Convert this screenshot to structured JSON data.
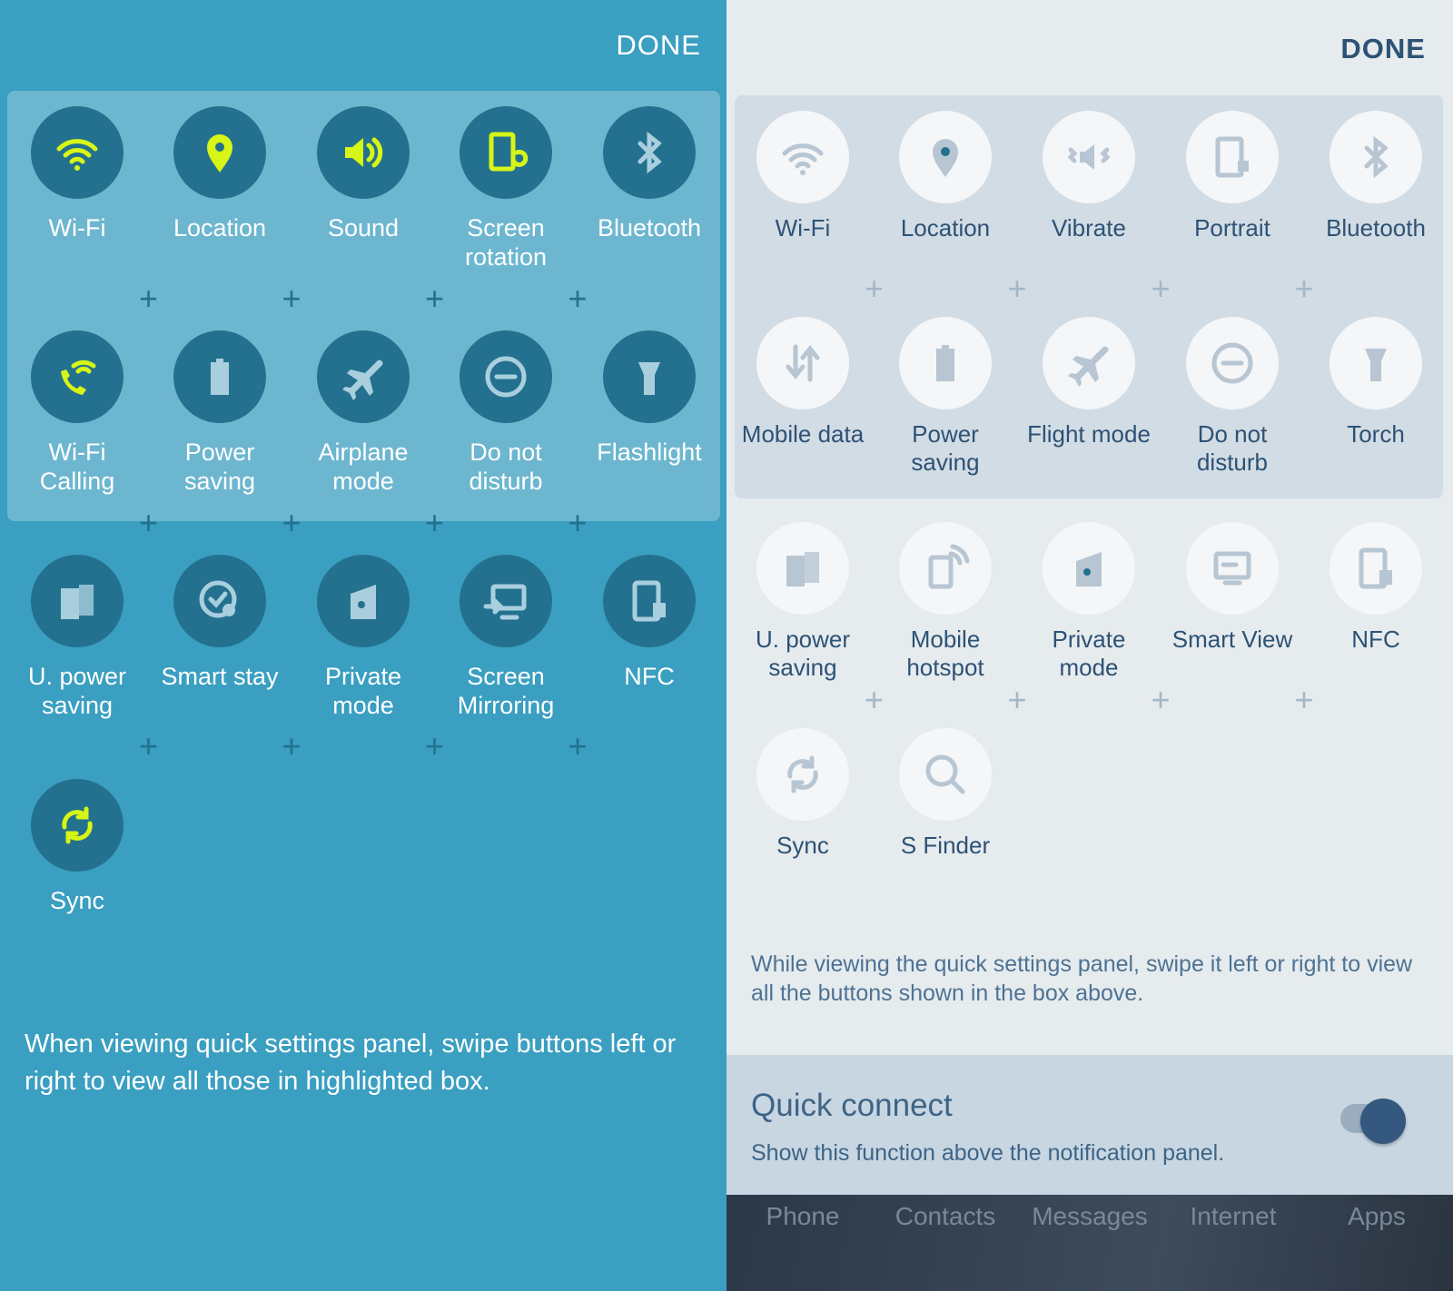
{
  "left": {
    "done": "DONE",
    "colors": {
      "background": "#3a9fc1",
      "highlight": "#6db6cf",
      "icon_bg": "#23718f",
      "active": "#d7f516",
      "inactive": "#a9cfdf"
    },
    "rows": [
      [
        {
          "label": "Wi-Fi",
          "icon": "wifi-icon",
          "active": true
        },
        {
          "label": "Location",
          "icon": "location-icon",
          "active": true
        },
        {
          "label": "Sound",
          "icon": "sound-icon",
          "active": true
        },
        {
          "label": "Screen rotation",
          "icon": "screen-rotation-icon",
          "active": true
        },
        {
          "label": "Bluetooth",
          "icon": "bluetooth-icon",
          "active": false
        }
      ],
      [
        {
          "label": "Wi-Fi Calling",
          "icon": "wifi-calling-icon",
          "active": true
        },
        {
          "label": "Power saving",
          "icon": "power-saving-icon",
          "active": false
        },
        {
          "label": "Airplane mode",
          "icon": "airplane-icon",
          "active": false
        },
        {
          "label": "Do not disturb",
          "icon": "do-not-disturb-icon",
          "active": false
        },
        {
          "label": "Flashlight",
          "icon": "flashlight-icon",
          "active": false
        }
      ],
      [
        {
          "label": "U. power saving",
          "icon": "ultra-power-saving-icon",
          "active": false
        },
        {
          "label": "Smart stay",
          "icon": "smart-stay-icon",
          "active": false
        },
        {
          "label": "Private mode",
          "icon": "private-mode-icon",
          "active": false
        },
        {
          "label": "Screen Mirroring",
          "icon": "screen-mirroring-icon",
          "active": false
        },
        {
          "label": "NFC",
          "icon": "nfc-icon",
          "active": false
        }
      ],
      [
        {
          "label": "Sync",
          "icon": "sync-icon",
          "active": true
        }
      ]
    ],
    "hint": "When viewing quick settings panel, swipe buttons left or right to view all those in highlighted box."
  },
  "right": {
    "done": "DONE",
    "rows": [
      [
        {
          "label": "Wi-Fi",
          "icon": "wifi-icon"
        },
        {
          "label": "Location",
          "icon": "location-icon"
        },
        {
          "label": "Vibrate",
          "icon": "vibrate-icon"
        },
        {
          "label": "Portrait",
          "icon": "portrait-icon"
        },
        {
          "label": "Bluetooth",
          "icon": "bluetooth-icon"
        }
      ],
      [
        {
          "label": "Mobile data",
          "icon": "mobile-data-icon"
        },
        {
          "label": "Power saving",
          "icon": "power-saving-icon"
        },
        {
          "label": "Flight mode",
          "icon": "airplane-icon"
        },
        {
          "label": "Do not disturb",
          "icon": "do-not-disturb-icon"
        },
        {
          "label": "Torch",
          "icon": "flashlight-icon"
        }
      ],
      [
        {
          "label": "U. power saving",
          "icon": "ultra-power-saving-icon"
        },
        {
          "label": "Mobile hotspot",
          "icon": "mobile-hotspot-icon"
        },
        {
          "label": "Private mode",
          "icon": "private-mode-icon"
        },
        {
          "label": "Smart View",
          "icon": "smart-view-icon"
        },
        {
          "label": "NFC",
          "icon": "nfc-icon"
        }
      ],
      [
        {
          "label": "Sync",
          "icon": "sync-icon"
        },
        {
          "label": "S Finder",
          "icon": "search-icon"
        }
      ]
    ],
    "hint": "While viewing the quick settings panel, swipe it left or right to view all the buttons shown in the box above.",
    "quick_connect": {
      "title": "Quick connect",
      "subtitle": "Show this function above the notification panel.",
      "enabled": true
    },
    "dock": [
      "Phone",
      "Contacts",
      "Messages",
      "Internet",
      "Apps"
    ]
  }
}
